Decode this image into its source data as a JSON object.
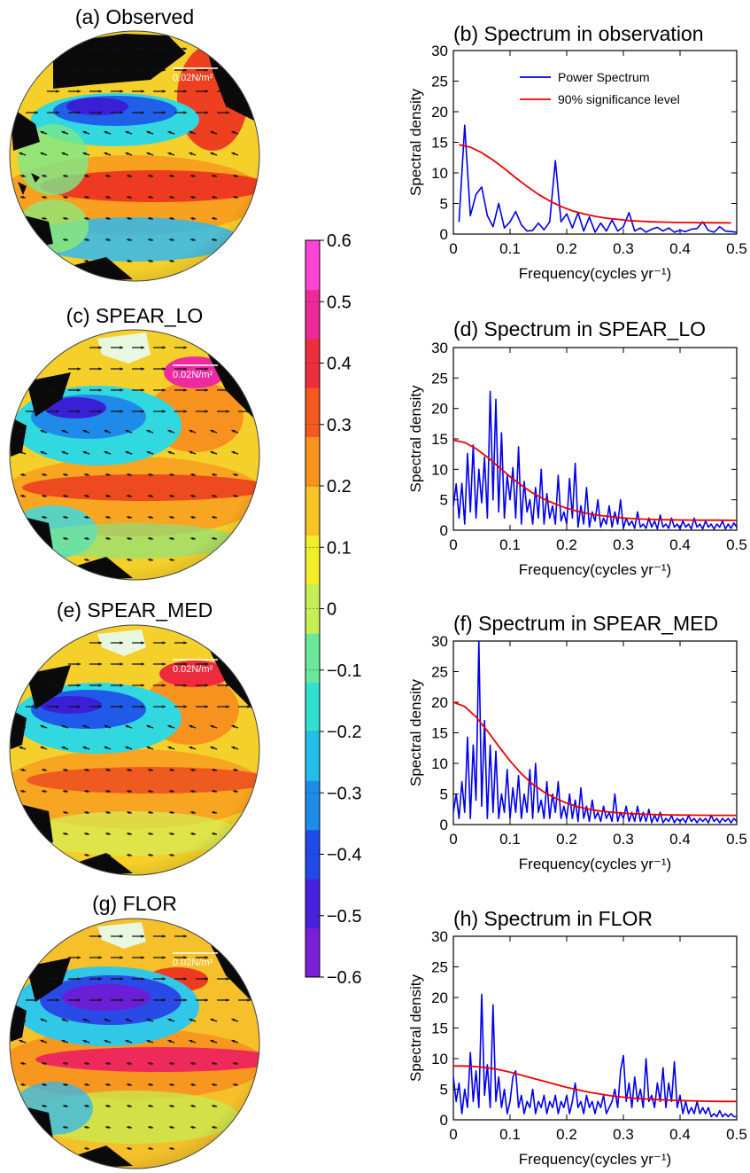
{
  "colorbar": {
    "ticks": [
      "0.6",
      "0.5",
      "0.4",
      "0.3",
      "0.2",
      "0.1",
      "0",
      "−0.1",
      "−0.2",
      "−0.3",
      "−0.4",
      "−0.5",
      "−0.6"
    ],
    "range": [
      -0.6,
      0.6
    ],
    "colors": [
      "#7a1fd6",
      "#4b1fe0",
      "#1f49e8",
      "#1f8be8",
      "#22bde8",
      "#31e0cf",
      "#6ae89a",
      "#c6ee55",
      "#f2ee2a",
      "#f8c324",
      "#f8951e",
      "#f45a1e",
      "#ee2e3d",
      "#ee2a98",
      "#ff44d6"
    ]
  },
  "maps": [
    {
      "title": "(a) Observed",
      "arrow_label": "0.02N/m²"
    },
    {
      "title": "(c) SPEAR_LO",
      "arrow_label": "0.02N/m²"
    },
    {
      "title": "(e) SPEAR_MED",
      "arrow_label": "0.02N/m²"
    },
    {
      "title": "(g) FLOR",
      "arrow_label": "0.02N/m²"
    }
  ],
  "chart_data": [
    {
      "type": "line",
      "title": "(b) Spectrum in observation",
      "xlabel": "Frequency(cycles yr⁻¹)",
      "ylabel": "Spectral density",
      "xlim": [
        0,
        0.5
      ],
      "ylim": [
        0,
        30
      ],
      "xticks": [
        "0",
        "0.1",
        "0.2",
        "0.3",
        "0.4",
        "0.5"
      ],
      "yticks": [
        "0",
        "5",
        "10",
        "15",
        "20",
        "25",
        "30"
      ],
      "legend": {
        "placement": "top-right",
        "entries": [
          "Power Spectrum",
          "90% significance level"
        ]
      },
      "series": [
        {
          "name": "Power Spectrum",
          "color": "#0000ee",
          "x": [
            0.01,
            0.02,
            0.03,
            0.04,
            0.05,
            0.06,
            0.07,
            0.08,
            0.09,
            0.1,
            0.11,
            0.12,
            0.13,
            0.14,
            0.15,
            0.16,
            0.17,
            0.18,
            0.19,
            0.2,
            0.21,
            0.22,
            0.23,
            0.24,
            0.25,
            0.26,
            0.27,
            0.28,
            0.29,
            0.3,
            0.31,
            0.32,
            0.33,
            0.34,
            0.35,
            0.36,
            0.37,
            0.38,
            0.39,
            0.4,
            0.41,
            0.42,
            0.43,
            0.44,
            0.45,
            0.46,
            0.47,
            0.48,
            0.49,
            0.5
          ],
          "y": [
            2,
            17.8,
            3,
            6.5,
            7.7,
            3,
            1.2,
            5,
            1,
            2,
            3.7,
            1.5,
            0.5,
            0.6,
            1.8,
            0.7,
            2,
            12,
            2,
            3.3,
            1,
            3.5,
            0.5,
            2.8,
            0.3,
            1.8,
            0.5,
            2.3,
            0.5,
            1.2,
            3.5,
            0.5,
            1,
            0.3,
            0.8,
            1.1,
            0.5,
            1,
            0.3,
            0.6,
            0.4,
            0.8,
            0.9,
            2,
            0.6,
            0.3,
            1.2,
            0.5,
            0.4,
            0.3
          ]
        },
        {
          "name": "90% significance level",
          "color": "#ee0000",
          "x": [
            0.01,
            0.03,
            0.05,
            0.07,
            0.09,
            0.11,
            0.13,
            0.15,
            0.17,
            0.19,
            0.21,
            0.23,
            0.25,
            0.27,
            0.29,
            0.31,
            0.33,
            0.35,
            0.37,
            0.39,
            0.41,
            0.43,
            0.45,
            0.47,
            0.49
          ],
          "y": [
            14.6,
            14.2,
            13.3,
            12.1,
            10.7,
            9.2,
            7.8,
            6.5,
            5.4,
            4.5,
            3.8,
            3.3,
            2.9,
            2.6,
            2.4,
            2.2,
            2.1,
            2.0,
            1.95,
            1.9,
            1.88,
            1.86,
            1.85,
            1.84,
            1.83
          ]
        }
      ]
    },
    {
      "type": "line",
      "title": "(d) Spectrum in SPEAR_LO",
      "xlabel": "Frequency(cycles yr⁻¹)",
      "ylabel": "Spectral density",
      "xlim": [
        0,
        0.5
      ],
      "ylim": [
        0,
        30
      ],
      "xticks": [
        "0",
        "0.1",
        "0.2",
        "0.3",
        "0.4",
        "0.5"
      ],
      "yticks": [
        "0",
        "5",
        "10",
        "15",
        "20",
        "25",
        "30"
      ],
      "series": [
        {
          "name": "Power Spectrum",
          "color": "#0000ee",
          "x": [
            0.0,
            0.005,
            0.01,
            0.015,
            0.02,
            0.025,
            0.03,
            0.035,
            0.04,
            0.045,
            0.05,
            0.055,
            0.06,
            0.065,
            0.07,
            0.075,
            0.08,
            0.085,
            0.09,
            0.095,
            0.1,
            0.105,
            0.11,
            0.115,
            0.12,
            0.125,
            0.13,
            0.135,
            0.14,
            0.145,
            0.15,
            0.155,
            0.16,
            0.165,
            0.17,
            0.175,
            0.18,
            0.185,
            0.19,
            0.195,
            0.2,
            0.205,
            0.21,
            0.215,
            0.22,
            0.225,
            0.23,
            0.235,
            0.24,
            0.245,
            0.25,
            0.255,
            0.26,
            0.265,
            0.27,
            0.275,
            0.28,
            0.285,
            0.29,
            0.295,
            0.3,
            0.305,
            0.31,
            0.315,
            0.32,
            0.325,
            0.33,
            0.335,
            0.34,
            0.345,
            0.35,
            0.355,
            0.36,
            0.365,
            0.37,
            0.375,
            0.38,
            0.385,
            0.39,
            0.395,
            0.4,
            0.405,
            0.41,
            0.415,
            0.42,
            0.425,
            0.43,
            0.435,
            0.44,
            0.445,
            0.45,
            0.455,
            0.46,
            0.465,
            0.47,
            0.475,
            0.48,
            0.485,
            0.49,
            0.495,
            0.5
          ],
          "y": [
            4,
            7.6,
            2,
            7.7,
            1,
            12.6,
            3,
            14,
            2,
            10,
            4.5,
            12,
            2,
            22.8,
            5,
            21.5,
            3,
            16,
            2,
            9,
            5,
            10.3,
            2,
            13.7,
            1,
            8,
            3,
            5,
            1,
            7,
            2,
            10,
            1,
            6,
            2,
            4,
            1,
            9,
            1.5,
            3,
            1,
            8.5,
            2,
            11,
            0.5,
            4,
            1,
            7,
            0.5,
            3,
            1.5,
            5,
            0.5,
            2,
            1,
            4,
            0.5,
            3,
            1,
            5,
            0.3,
            2,
            0.8,
            1.5,
            0.3,
            3,
            0.5,
            1,
            0.3,
            2,
            0.5,
            1.5,
            0.2,
            2.5,
            0.5,
            1,
            0.3,
            2,
            0.5,
            1,
            0.2,
            1.5,
            0.5,
            1,
            0.2,
            2,
            0.5,
            1,
            0.2,
            1.5,
            0.5,
            1,
            0.2,
            1,
            0.5,
            1.5,
            0.2,
            1,
            0.3,
            1.2,
            0.5
          ]
        },
        {
          "name": "90% significance level",
          "color": "#ee0000",
          "x": [
            0,
            0.02,
            0.04,
            0.06,
            0.08,
            0.1,
            0.12,
            0.14,
            0.16,
            0.18,
            0.2,
            0.22,
            0.24,
            0.26,
            0.28,
            0.3,
            0.32,
            0.34,
            0.36,
            0.38,
            0.4,
            0.42,
            0.44,
            0.46,
            0.48,
            0.5
          ],
          "y": [
            14.8,
            14.4,
            13.4,
            12.0,
            10.4,
            8.8,
            7.4,
            6.1,
            5.1,
            4.3,
            3.6,
            3.1,
            2.7,
            2.4,
            2.2,
            2.0,
            1.9,
            1.8,
            1.75,
            1.7,
            1.68,
            1.66,
            1.65,
            1.64,
            1.63,
            1.62
          ]
        }
      ]
    },
    {
      "type": "line",
      "title": "(f) Spectrum in SPEAR_MED",
      "xlabel": "Frequency(cycles yr⁻¹)",
      "ylabel": "Spectral density",
      "xlim": [
        0,
        0.5
      ],
      "ylim": [
        0,
        30
      ],
      "xticks": [
        "0",
        "0.1",
        "0.2",
        "0.3",
        "0.4",
        "0.5"
      ],
      "yticks": [
        "0",
        "5",
        "10",
        "15",
        "20",
        "25",
        "30"
      ],
      "series": [
        {
          "name": "Power Spectrum",
          "color": "#0000ee",
          "x": [
            0.0,
            0.005,
            0.01,
            0.015,
            0.02,
            0.025,
            0.03,
            0.035,
            0.04,
            0.045,
            0.05,
            0.055,
            0.06,
            0.065,
            0.07,
            0.075,
            0.08,
            0.085,
            0.09,
            0.095,
            0.1,
            0.105,
            0.11,
            0.115,
            0.12,
            0.125,
            0.13,
            0.135,
            0.14,
            0.145,
            0.15,
            0.155,
            0.16,
            0.165,
            0.17,
            0.175,
            0.18,
            0.185,
            0.19,
            0.195,
            0.2,
            0.205,
            0.21,
            0.215,
            0.22,
            0.225,
            0.23,
            0.235,
            0.24,
            0.245,
            0.25,
            0.255,
            0.26,
            0.265,
            0.27,
            0.275,
            0.28,
            0.285,
            0.29,
            0.295,
            0.3,
            0.305,
            0.31,
            0.315,
            0.32,
            0.325,
            0.33,
            0.335,
            0.34,
            0.345,
            0.35,
            0.355,
            0.36,
            0.365,
            0.37,
            0.375,
            0.38,
            0.385,
            0.39,
            0.395,
            0.4,
            0.405,
            0.41,
            0.415,
            0.42,
            0.425,
            0.43,
            0.435,
            0.44,
            0.445,
            0.45,
            0.455,
            0.46,
            0.465,
            0.47,
            0.475,
            0.48,
            0.485,
            0.49,
            0.495,
            0.5
          ],
          "y": [
            2,
            5,
            1,
            7,
            2,
            14.3,
            1,
            13,
            4,
            30,
            3,
            17,
            1,
            13,
            2,
            12,
            1,
            5,
            2,
            9,
            1,
            6,
            2,
            8,
            1,
            5,
            2,
            9,
            1,
            10,
            2,
            4,
            1,
            7,
            1,
            5,
            2,
            7,
            1,
            3,
            1,
            5,
            1,
            4,
            0.5,
            6,
            1,
            3,
            0.5,
            4,
            1,
            2,
            0.5,
            3,
            1,
            2,
            0.5,
            5,
            0.5,
            2,
            1,
            3,
            0.5,
            2,
            0.5,
            3,
            0.5,
            2,
            0.5,
            2.5,
            0.3,
            1.5,
            0.5,
            2,
            0.3,
            1,
            0.5,
            1.5,
            0.3,
            1,
            0.5,
            1,
            0.3,
            1.5,
            0.5,
            1,
            0.3,
            1,
            0.5,
            1,
            0.3,
            1.5,
            0.5,
            1,
            0.3,
            1,
            0.5,
            1,
            0.3,
            1,
            0.5
          ]
        },
        {
          "name": "90% significance level",
          "color": "#ee0000",
          "x": [
            0,
            0.02,
            0.04,
            0.06,
            0.08,
            0.1,
            0.12,
            0.14,
            0.16,
            0.18,
            0.2,
            0.22,
            0.24,
            0.26,
            0.28,
            0.3,
            0.32,
            0.34,
            0.36,
            0.38,
            0.4,
            0.42,
            0.44,
            0.46,
            0.48,
            0.5
          ],
          "y": [
            20.0,
            19.3,
            17.6,
            15.3,
            12.8,
            10.4,
            8.3,
            6.6,
            5.3,
            4.3,
            3.5,
            2.9,
            2.5,
            2.2,
            2.0,
            1.85,
            1.75,
            1.68,
            1.62,
            1.58,
            1.55,
            1.53,
            1.52,
            1.51,
            1.5,
            1.5
          ]
        }
      ]
    },
    {
      "type": "line",
      "title": "(h) Spectrum in FLOR",
      "xlabel": "Frequency(cycles yr⁻¹)",
      "ylabel": "Spectral density",
      "xlim": [
        0,
        0.5
      ],
      "ylim": [
        0,
        30
      ],
      "xticks": [
        "0",
        "0.1",
        "0.2",
        "0.3",
        "0.4",
        "0.5"
      ],
      "yticks": [
        "0",
        "5",
        "10",
        "15",
        "20",
        "25",
        "30"
      ],
      "series": [
        {
          "name": "Power Spectrum",
          "color": "#0000ee",
          "x": [
            0.0,
            0.005,
            0.01,
            0.015,
            0.02,
            0.025,
            0.03,
            0.035,
            0.04,
            0.045,
            0.05,
            0.055,
            0.06,
            0.065,
            0.07,
            0.075,
            0.08,
            0.085,
            0.09,
            0.095,
            0.1,
            0.105,
            0.11,
            0.115,
            0.12,
            0.125,
            0.13,
            0.135,
            0.14,
            0.145,
            0.15,
            0.155,
            0.16,
            0.165,
            0.17,
            0.175,
            0.18,
            0.185,
            0.19,
            0.195,
            0.2,
            0.205,
            0.21,
            0.215,
            0.22,
            0.225,
            0.23,
            0.235,
            0.24,
            0.245,
            0.25,
            0.255,
            0.26,
            0.265,
            0.27,
            0.275,
            0.28,
            0.285,
            0.29,
            0.295,
            0.3,
            0.305,
            0.31,
            0.315,
            0.32,
            0.325,
            0.33,
            0.335,
            0.34,
            0.345,
            0.35,
            0.355,
            0.36,
            0.365,
            0.37,
            0.375,
            0.38,
            0.385,
            0.39,
            0.395,
            0.4,
            0.405,
            0.41,
            0.415,
            0.42,
            0.425,
            0.43,
            0.435,
            0.44,
            0.445,
            0.45,
            0.455,
            0.46,
            0.465,
            0.47,
            0.475,
            0.48,
            0.485,
            0.49,
            0.495,
            0.5
          ],
          "y": [
            7,
            3,
            6,
            1,
            5,
            2,
            11,
            3,
            8,
            2,
            20.5,
            4,
            9,
            2,
            18.8,
            3,
            7,
            2,
            5,
            1,
            3,
            7,
            8,
            2,
            4,
            1,
            3,
            2,
            5,
            1,
            3,
            2,
            4,
            1,
            3,
            2,
            4,
            1,
            3,
            2,
            4,
            1,
            3,
            6,
            2,
            3,
            1,
            4,
            2,
            3,
            1,
            3,
            2,
            4,
            1,
            2,
            3,
            5,
            2,
            8,
            10.5,
            3,
            6,
            2,
            7,
            3,
            5,
            2,
            10,
            3,
            4,
            2,
            6,
            3,
            8.5,
            2,
            6,
            3,
            9.5,
            2,
            4,
            1,
            3,
            1,
            2,
            1,
            3,
            1,
            2,
            1,
            2,
            0.5,
            1,
            0.5,
            1.5,
            0.5,
            1,
            0.5,
            1,
            0.5,
            0.5
          ]
        },
        {
          "name": "90% significance level",
          "color": "#ee0000",
          "x": [
            0,
            0.02,
            0.04,
            0.06,
            0.08,
            0.1,
            0.12,
            0.14,
            0.16,
            0.18,
            0.2,
            0.22,
            0.24,
            0.26,
            0.28,
            0.3,
            0.32,
            0.34,
            0.36,
            0.38,
            0.4,
            0.42,
            0.44,
            0.46,
            0.48,
            0.5
          ],
          "y": [
            8.8,
            8.8,
            8.7,
            8.5,
            8.2,
            7.8,
            7.3,
            6.8,
            6.3,
            5.8,
            5.3,
            4.9,
            4.5,
            4.2,
            3.9,
            3.7,
            3.5,
            3.4,
            3.3,
            3.2,
            3.15,
            3.1,
            3.05,
            3.02,
            3.0,
            3.0
          ]
        }
      ]
    }
  ]
}
